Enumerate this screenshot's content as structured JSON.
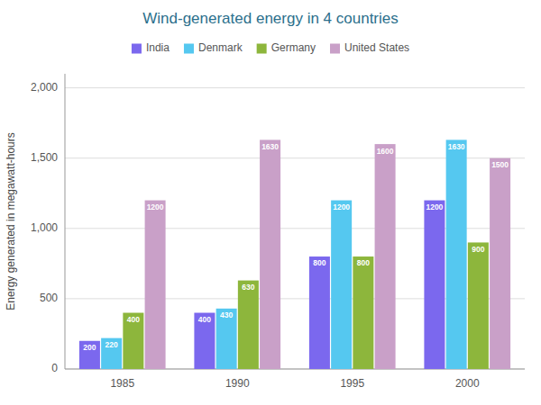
{
  "chart_data": {
    "type": "bar",
    "title": "Wind-generated energy in 4 countries",
    "y_label": "Energy generated in megawatt-hours",
    "categories": [
      "1985",
      "1990",
      "1995",
      "2000"
    ],
    "series": [
      {
        "name": "India",
        "color": "#7B68EE",
        "values": [
          200,
          400,
          800,
          1200
        ]
      },
      {
        "name": "Denmark",
        "color": "#55C8F0",
        "values": [
          220,
          430,
          1200,
          1630
        ]
      },
      {
        "name": "Germany",
        "color": "#8DB63C",
        "values": [
          400,
          630,
          800,
          900
        ]
      },
      {
        "name": "United States",
        "color": "#C9A0C8",
        "values": [
          1200,
          1630,
          1600,
          1500
        ]
      }
    ],
    "ylim": [
      0,
      2100
    ],
    "yticks": [
      0,
      500,
      {
        "value": 1000,
        "label": "1,000"
      },
      {
        "value": 1500,
        "label": "1,500"
      },
      {
        "value": 2000,
        "label": "2,000"
      }
    ],
    "grid": true,
    "legend": "top",
    "data_labels": true
  }
}
